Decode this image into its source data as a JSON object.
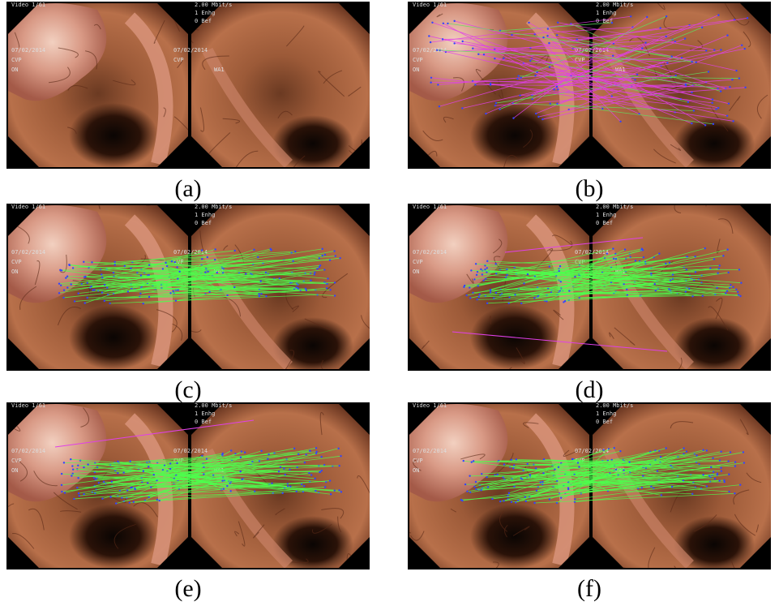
{
  "figure": {
    "overlay_left": [
      "Video 1/61",
      "07/02/2014",
      "CVP",
      "ON"
    ],
    "overlay_right": [
      "2.00 Mbit/s",
      "1 Enhg",
      "0 Bef",
      "07/02/2014",
      "CVP",
      "WA1"
    ],
    "panels": [
      {
        "label": "(a)"
      },
      {
        "label": "(b)"
      },
      {
        "label": "(c)"
      },
      {
        "label": "(d)"
      },
      {
        "label": "(e)"
      },
      {
        "label": "(f)"
      }
    ]
  }
}
